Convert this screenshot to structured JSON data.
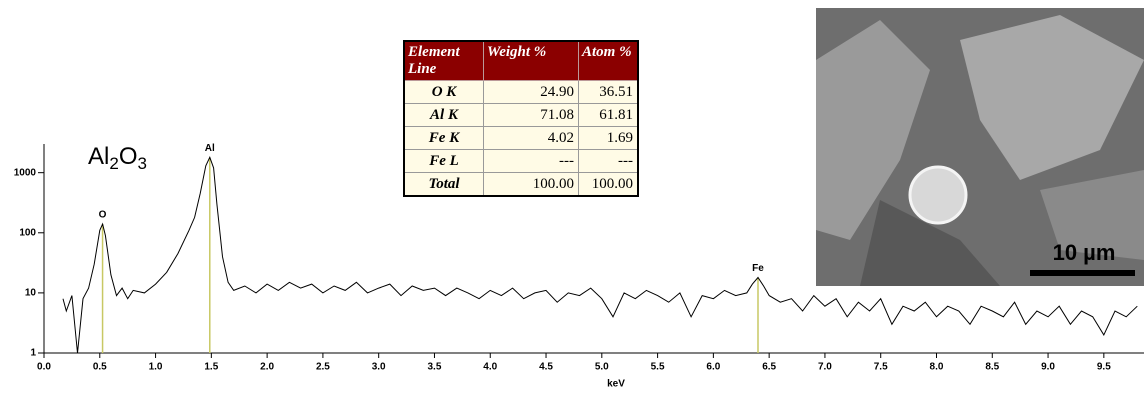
{
  "chart_data": {
    "type": "line",
    "xlabel": "keV",
    "log_y": true,
    "formula": {
      "parts": [
        "Al",
        "2",
        "O",
        "3"
      ]
    },
    "x": [
      0.17,
      0.2,
      0.25,
      0.3,
      0.35,
      0.4,
      0.45,
      0.5,
      0.525,
      0.55,
      0.6,
      0.65,
      0.7,
      0.75,
      0.8,
      0.9,
      1.0,
      1.1,
      1.2,
      1.3,
      1.35,
      1.4,
      1.45,
      1.486,
      1.52,
      1.55,
      1.6,
      1.65,
      1.7,
      1.8,
      1.9,
      2.0,
      2.1,
      2.2,
      2.3,
      2.4,
      2.5,
      2.6,
      2.7,
      2.8,
      2.9,
      3.0,
      3.1,
      3.2,
      3.3,
      3.4,
      3.5,
      3.6,
      3.7,
      3.8,
      3.9,
      4.0,
      4.1,
      4.2,
      4.3,
      4.4,
      4.5,
      4.6,
      4.7,
      4.8,
      4.9,
      5.0,
      5.1,
      5.2,
      5.3,
      5.4,
      5.5,
      5.6,
      5.7,
      5.8,
      5.9,
      6.0,
      6.1,
      6.2,
      6.3,
      6.35,
      6.4,
      6.45,
      6.5,
      6.6,
      6.7,
      6.8,
      6.9,
      7.0,
      7.1,
      7.2,
      7.3,
      7.4,
      7.5,
      7.6,
      7.7,
      7.8,
      7.9,
      8.0,
      8.1,
      8.2,
      8.3,
      8.4,
      8.5,
      8.6,
      8.7,
      8.8,
      8.9,
      9.0,
      9.1,
      9.2,
      9.3,
      9.4,
      9.5,
      9.6,
      9.7,
      9.8
    ],
    "series": [
      {
        "color": "#000000",
        "values": [
          8,
          5,
          9,
          1,
          8,
          12,
          30,
          110,
          140,
          90,
          20,
          9,
          12,
          8,
          11,
          10,
          14,
          22,
          45,
          110,
          180,
          450,
          1300,
          1800,
          1200,
          300,
          40,
          15,
          11,
          13,
          10,
          14,
          11,
          15,
          12,
          14,
          10,
          13,
          11,
          15,
          10,
          12,
          14,
          9,
          13,
          11,
          12,
          9,
          12,
          10,
          8,
          11,
          9,
          12,
          8,
          10,
          11,
          7,
          10,
          9,
          12,
          8,
          4,
          10,
          8,
          11,
          9,
          7,
          10,
          4,
          9,
          8,
          11,
          9,
          10,
          14,
          18,
          13,
          9,
          7,
          8,
          5,
          9,
          6,
          8,
          4,
          7,
          5,
          8,
          3,
          6,
          5,
          7,
          4,
          6,
          5,
          3,
          6,
          5,
          4,
          7,
          3,
          5,
          4,
          6,
          3,
          5,
          4,
          2,
          5,
          4,
          6
        ]
      }
    ],
    "annotations": [
      {
        "label": "O",
        "x": 0.525
      },
      {
        "label": "Al",
        "x": 1.486
      },
      {
        "label": "Fe",
        "x": 6.4
      }
    ],
    "marker_color": "#c8c864",
    "xlim": [
      0,
      9.86
    ],
    "xticks": [
      {
        "value": 0,
        "label": "0.0"
      },
      0.5,
      {
        "value": 1,
        "label": "1.0"
      },
      1.5,
      {
        "value": 2,
        "label": "2.0"
      },
      2.5,
      {
        "value": 3,
        "label": "3.0"
      },
      3.5,
      {
        "value": 4,
        "label": "4.0"
      },
      4.5,
      {
        "value": 5,
        "label": "5.0"
      },
      5.5,
      {
        "value": 6,
        "label": "6.0"
      },
      6.5,
      {
        "value": 7,
        "label": "7.0"
      },
      7.5,
      {
        "value": 8,
        "label": "8.0"
      },
      8.5,
      {
        "value": 9,
        "label": "9.0"
      },
      9.5
    ],
    "ylim": [
      1,
      3000
    ],
    "yticks": [
      1,
      10,
      100,
      1000
    ]
  },
  "table": {
    "header": [
      [
        "Element",
        "Line"
      ],
      "Weight %",
      "Atom %"
    ],
    "rows": [
      [
        "O K",
        "24.90",
        "36.51"
      ],
      [
        "Al K",
        "71.08",
        "61.81"
      ],
      [
        "Fe K",
        "4.02",
        "1.69"
      ],
      [
        "Fe L",
        "---",
        "---"
      ],
      [
        "Total",
        "100.00",
        "100.00"
      ]
    ]
  },
  "micrograph": {
    "scale_label": "10 µm"
  }
}
